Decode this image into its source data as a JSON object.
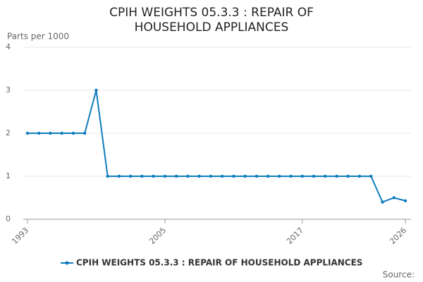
{
  "chart_data": {
    "type": "line",
    "title": "CPIH WEIGHTS 05.3.3 : REPAIR OF HOUSEHOLD APPLIANCES",
    "y_label": "Parts per 1000",
    "source": "Source:",
    "x": [
      1993,
      1994,
      1995,
      1996,
      1997,
      1998,
      1999,
      2000,
      2001,
      2002,
      2003,
      2004,
      2005,
      2006,
      2007,
      2008,
      2009,
      2010,
      2011,
      2012,
      2013,
      2014,
      2015,
      2016,
      2017,
      2018,
      2019,
      2020,
      2021,
      2022,
      2023,
      2024,
      2025,
      2026
    ],
    "series": [
      {
        "name": "CPIH WEIGHTS 05.3.3 : REPAIR OF HOUSEHOLD APPLIANCES",
        "color": "#0f7cbf",
        "values": [
          2,
          2,
          2,
          2,
          2,
          2,
          3,
          1,
          1,
          1,
          1,
          1,
          1,
          1,
          1,
          1,
          1,
          1,
          1,
          1,
          1,
          1,
          1,
          1,
          1,
          1,
          1,
          1,
          1,
          1,
          1,
          0.4,
          0.5,
          0.43
        ]
      }
    ],
    "xlim": [
      1993,
      2026
    ],
    "xticks": [
      1993,
      2005,
      2017,
      2026
    ],
    "ylim": [
      0,
      4
    ],
    "yticks": [
      0,
      1,
      2,
      3,
      4
    ],
    "grid": true
  }
}
